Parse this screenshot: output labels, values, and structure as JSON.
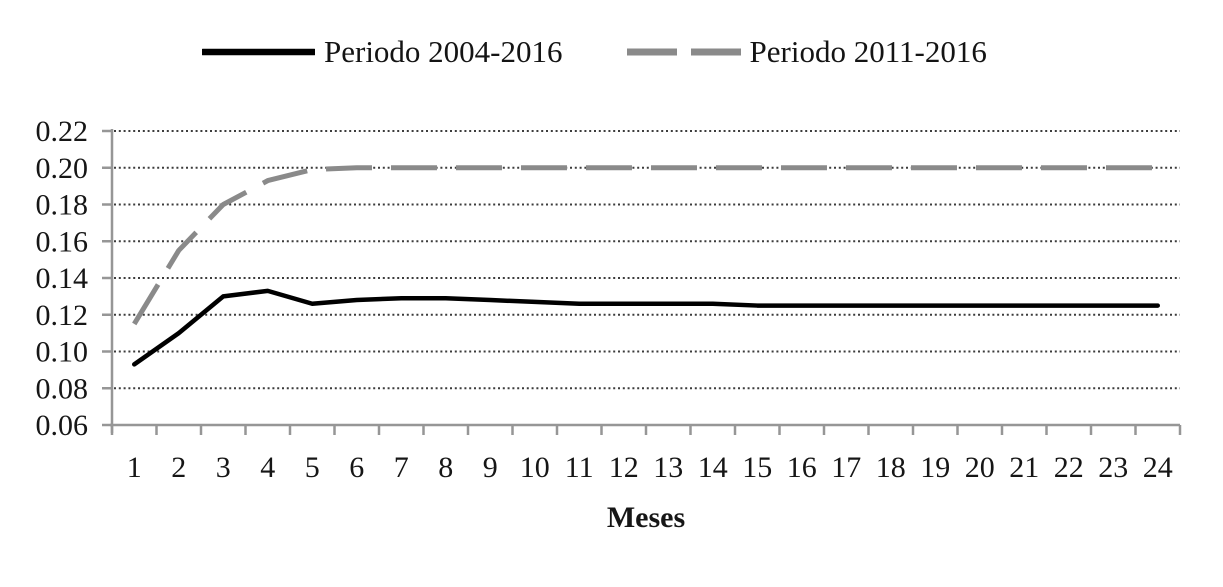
{
  "chart_data": {
    "type": "line",
    "title": "",
    "xlabel": "Meses",
    "ylabel": "",
    "ylim": [
      0.06,
      0.22
    ],
    "grid": "horizontal dotted lines at every y tick",
    "legend_position": "top-center",
    "x_tick_labels": [
      "1",
      "2",
      "3",
      "4",
      "5",
      "6",
      "7",
      "8",
      "9",
      "10",
      "11",
      "12",
      "13",
      "14",
      "15",
      "16",
      "17",
      "18",
      "19",
      "20",
      "21",
      "22",
      "23",
      "24"
    ],
    "y_ticks": [
      0.06,
      0.08,
      0.1,
      0.12,
      0.14,
      0.16,
      0.18,
      0.2,
      0.22
    ],
    "y_tick_labels": [
      "0.06",
      "0.08",
      "0.10",
      "0.12",
      "0.14",
      "0.16",
      "0.18",
      "0.20",
      "0.22"
    ],
    "series": [
      {
        "name": "Periodo 2004-2016",
        "style": "solid",
        "color": "#000000",
        "values": [
          0.093,
          0.11,
          0.13,
          0.133,
          0.126,
          0.128,
          0.129,
          0.129,
          0.128,
          0.127,
          0.126,
          0.126,
          0.126,
          0.126,
          0.125,
          0.125,
          0.125,
          0.125,
          0.125,
          0.125,
          0.125,
          0.125,
          0.125,
          0.125
        ]
      },
      {
        "name": "Periodo 2011-2016",
        "style": "dashed",
        "color": "#8a8a8a",
        "values": [
          0.115,
          0.155,
          0.18,
          0.193,
          0.199,
          0.2,
          0.2,
          0.2,
          0.2,
          0.2,
          0.2,
          0.2,
          0.2,
          0.2,
          0.2,
          0.2,
          0.2,
          0.2,
          0.2,
          0.2,
          0.2,
          0.2,
          0.2,
          0.2
        ]
      }
    ]
  },
  "colors": {
    "background": "#ffffff",
    "axis": "#969696",
    "grid_dots": "#3c3c3c",
    "text": "#161616"
  }
}
